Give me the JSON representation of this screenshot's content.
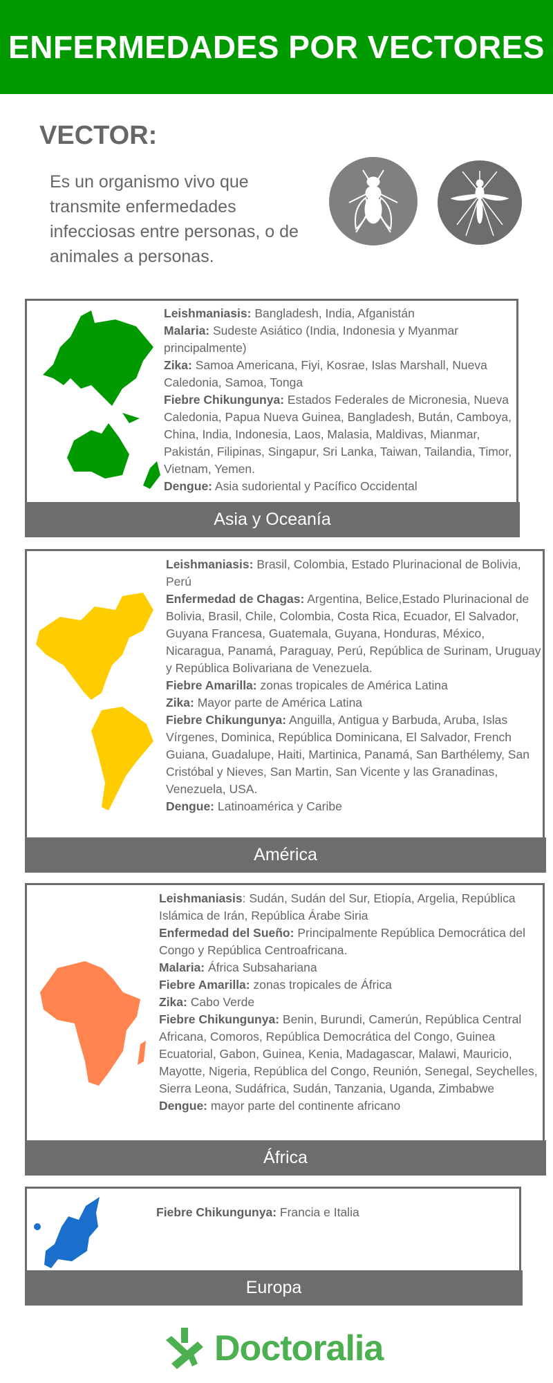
{
  "header": {
    "title": "ENFERMEDADES POR VECTORES",
    "background": "#009900"
  },
  "vector": {
    "title": "VECTOR:",
    "description": "Es un organismo vivo que transmite enfermedades infecciosas entre personas, o de animales a personas.",
    "icons": [
      "fly-icon",
      "mosquito-icon"
    ]
  },
  "regions": [
    {
      "name": "Asia y Oceanía",
      "map_color": "#009900",
      "entries": [
        {
          "label": "Leishmaniasis:",
          "text": " Bangladesh, India, Afganistán"
        },
        {
          "label": "Malaria:",
          "text": " Sudeste Asiático (India, Indonesia y Myanmar principalmente)"
        },
        {
          "label": "Zika:",
          "text": " Samoa Americana, Fiyi, Kosrae, Islas Marshall, Nueva Caledonia, Samoa, Tonga"
        },
        {
          "label": "Fiebre Chikungunya:",
          "text": " Estados Federales de Micronesia, Nueva Caledonia, Papua Nueva Guinea, Bangladesh, Bután, Camboya, China, India, Indonesia, Laos, Malasia, Maldivas, Mianmar, Pakistán, Filipinas, Singapur, Sri Lanka, Taiwan, Tailandia, Timor, Vietnam, Yemen."
        },
        {
          "label": "Dengue:",
          "text": " Asia sudoriental y Pacífico Occidental"
        }
      ]
    },
    {
      "name": "América",
      "map_color": "#ffcc00",
      "entries": [
        {
          "label": "Leishmaniasis:",
          "text": " Brasil, Colombia, Estado Plurinacional de Bolivia, Perú"
        },
        {
          "label": "Enfermedad de Chagas:",
          "text": " Argentina, Belice,Estado Plurinacional de Bolivia, Brasil, Chile, Colombia, Costa Rica, Ecuador, El Salvador, Guyana Francesa, Guatemala, Guyana, Honduras, México, Nicaragua, Panamá, Paraguay, Perú, República de Surinam, Uruguay y República Bolivariana de Venezuela."
        },
        {
          "label": "Fiebre Amarilla:",
          "text": " zonas tropicales de América Latina"
        },
        {
          "label": "Zika:",
          "text": " Mayor parte de América Latina"
        },
        {
          "label": "Fiebre Chikungunya:",
          "text": " Anguilla, Antigua y Barbuda, Aruba, Islas Vírgenes, Dominica, República Dominicana, El Salvador, French Guiana, Guadalupe, Haiti, Martinica, Panamá, San Barthélemy, San Cristóbal y Nieves, San Martin, San Vicente y las Granadinas, Venezuela, USA."
        },
        {
          "label": "Dengue:",
          "text": " Latinoamérica y Caribe"
        }
      ]
    },
    {
      "name": "África",
      "map_color": "#ff8450",
      "entries": [
        {
          "label": "Leishmaniasis",
          "text": ": Sudán, Sudán del Sur, Etiopía, Argelia, República Islámica de Irán, República Árabe Siria"
        },
        {
          "label": "Enfermedad del Sueño:",
          "text": " Principalmente República Democrática del Congo y República Centroafricana."
        },
        {
          "label": "Malaria:",
          "text": " África Subsahariana"
        },
        {
          "label": "Fiebre Amarilla:",
          "text": " zonas tropicales de África"
        },
        {
          "label": "Zika:",
          "text": " Cabo Verde"
        },
        {
          "label": "Fiebre Chikungunya:",
          "text": " Benin, Burundi, Camerún, República Central Africana, Comoros, República Democrática del Congo, Guinea Ecuatorial, Gabon, Guinea, Kenia, Madagascar, Malawi, Mauricio, Mayotte, Nigeria, República del Congo, Reunión, Senegal, Seychelles, Sierra Leona, Sudáfrica, Sudán, Tanzania, Uganda, Zimbabwe"
        },
        {
          "label": "Dengue:",
          "text": " mayor parte del continente africano"
        }
      ]
    },
    {
      "name": "Europa",
      "map_color": "#1a6fcc",
      "entries": [
        {
          "label": "Fiebre Chikungunya:",
          "text": " Francia e Italia"
        }
      ]
    }
  ],
  "footer": {
    "logo_text": "Doctoralia",
    "logo_color": "#4caf50"
  }
}
